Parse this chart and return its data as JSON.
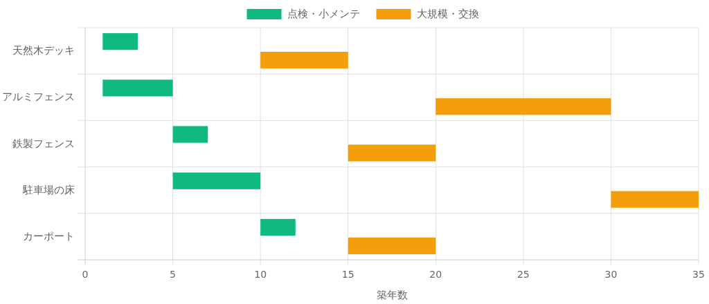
{
  "chart_data": {
    "type": "bar",
    "orientation": "horizontal",
    "xlabel": "築年数",
    "categories": [
      "天然木デッキ",
      "アルミフェンス",
      "鉄製フェンス",
      "駐車場の床",
      "カーポート"
    ],
    "series": [
      {
        "name": "点検・小メンテ",
        "color": "#10b981",
        "base": [
          1,
          1,
          5,
          5,
          10
        ],
        "values": [
          2,
          4,
          2,
          5,
          2
        ]
      },
      {
        "name": "大規模・交換",
        "color": "#f59e0b",
        "base": [
          10,
          20,
          15,
          30,
          15
        ],
        "values": [
          5,
          10,
          5,
          5,
          5
        ]
      }
    ],
    "xlim": [
      0,
      35
    ],
    "xticks": [
      0,
      5,
      10,
      15,
      20,
      25,
      30,
      35
    ],
    "grid": true,
    "legend": "top"
  }
}
